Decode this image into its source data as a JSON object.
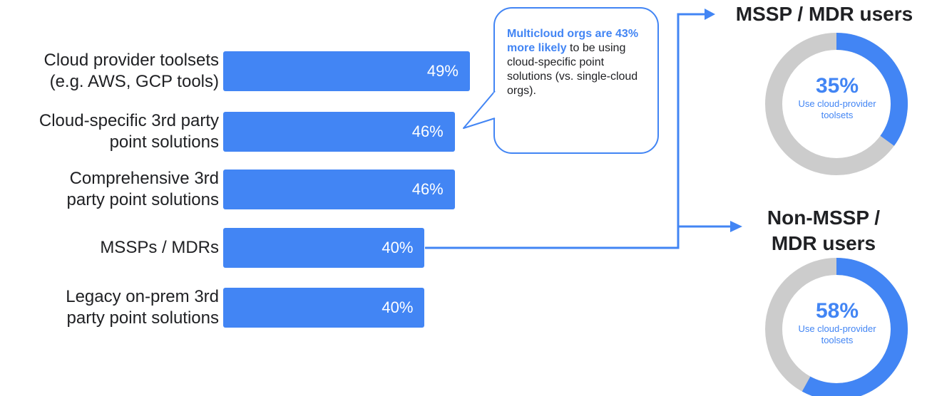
{
  "chart_data": {
    "type": "bar",
    "orientation": "horizontal",
    "categories": [
      [
        "Cloud provider toolsets",
        "(e.g. AWS, GCP tools)"
      ],
      [
        "Cloud-specific 3rd party",
        "point solutions"
      ],
      [
        "Comprehensive 3rd",
        "party point solutions"
      ],
      [
        "MSSPs / MDRs"
      ],
      [
        "Legacy on-prem 3rd",
        "party point solutions"
      ]
    ],
    "values": [
      49,
      46,
      46,
      40,
      40
    ],
    "value_labels": [
      "49%",
      "46%",
      "46%",
      "40%",
      "40%"
    ],
    "unit": "%",
    "bar_color": "#4285f4"
  },
  "callout": {
    "highlight": "Multicloud orgs are 43% more likely",
    "text": " to be using cloud-specific point solutions (vs. single-cloud orgs)."
  },
  "donuts": [
    {
      "title": "MSSP / MDR users",
      "value": 35,
      "value_label": "35%",
      "subtitle": "Use cloud-provider toolsets",
      "color": "#4285f4",
      "track_color": "#cccccc"
    },
    {
      "title": "Non-MSSP / MDR users",
      "value": 58,
      "value_label": "58%",
      "subtitle": "Use cloud-provider toolsets",
      "color": "#4285f4",
      "track_color": "#cccccc"
    }
  ],
  "colors": {
    "accent": "#4285f4",
    "text": "#202124",
    "track": "#cccccc"
  }
}
